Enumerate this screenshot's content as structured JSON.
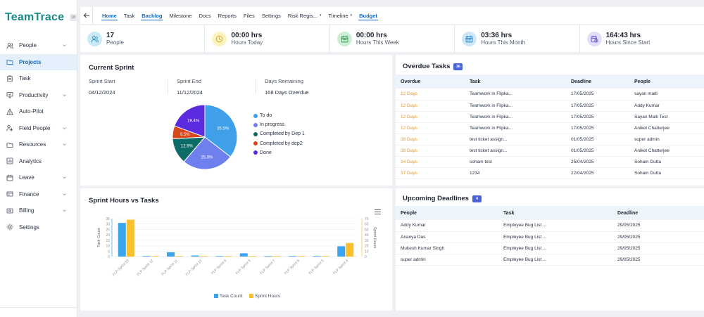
{
  "app": {
    "name": "TeamTrace",
    "badge": "18"
  },
  "sidebar": {
    "items": [
      {
        "label": "People",
        "icon": "people-icon",
        "chevron": true,
        "active": false
      },
      {
        "label": "Projects",
        "icon": "folder-icon",
        "chevron": false,
        "active": true
      },
      {
        "label": "Task",
        "icon": "clipboard-icon",
        "chevron": false,
        "active": false
      },
      {
        "label": "Productivity",
        "icon": "monitor-icon",
        "chevron": true,
        "active": false
      },
      {
        "label": "Auto-Pilot",
        "icon": "warning-icon",
        "chevron": false,
        "active": false
      },
      {
        "label": "Field People",
        "icon": "field-people-icon",
        "chevron": true,
        "active": false
      },
      {
        "label": "Resources",
        "icon": "folder-icon",
        "chevron": true,
        "active": false
      },
      {
        "label": "Analytics",
        "icon": "analytics-icon",
        "chevron": false,
        "active": false
      },
      {
        "label": "Leave",
        "icon": "calendar-icon",
        "chevron": true,
        "active": false
      },
      {
        "label": "Finance",
        "icon": "finance-icon",
        "chevron": true,
        "active": false
      },
      {
        "label": "Billing",
        "icon": "billing-icon",
        "chevron": true,
        "active": false
      },
      {
        "label": "Settings",
        "icon": "gear-icon",
        "chevron": false,
        "active": false
      }
    ]
  },
  "topnav": {
    "tabs": [
      {
        "label": "Home",
        "highlight": true,
        "caret": false
      },
      {
        "label": "Task",
        "highlight": false,
        "caret": false
      },
      {
        "label": "Backlog",
        "highlight": true,
        "caret": false
      },
      {
        "label": "Milestone",
        "highlight": false,
        "caret": false
      },
      {
        "label": "Docs",
        "highlight": false,
        "caret": false
      },
      {
        "label": "Reports",
        "highlight": false,
        "caret": false
      },
      {
        "label": "Files",
        "highlight": false,
        "caret": false
      },
      {
        "label": "Settings",
        "highlight": false,
        "caret": false
      },
      {
        "label": "Risk Regis...",
        "highlight": false,
        "caret": true
      },
      {
        "label": "Timeline",
        "highlight": false,
        "caret": true
      },
      {
        "label": "Budget",
        "highlight": true,
        "caret": false
      }
    ]
  },
  "stats": [
    {
      "value": "17",
      "label": "People",
      "icon": "people-icon",
      "color": "#c9e9f6",
      "fg": "#2d8fc2"
    },
    {
      "value": "00:00 hrs",
      "label": "Hours Today",
      "icon": "clock-icon",
      "color": "#fdf3bf",
      "fg": "#d7a11a"
    },
    {
      "value": "00:00 hrs",
      "label": "Hours This Week",
      "icon": "calendar-week-icon",
      "color": "#cdeed5",
      "fg": "#2f9b57"
    },
    {
      "value": "03:36 hrs",
      "label": "Hours This Month",
      "icon": "calendar-month-icon",
      "color": "#cfe6f6",
      "fg": "#2d86c2"
    },
    {
      "value": "164:43 hrs",
      "label": "Hours Since Start",
      "icon": "calendar-clock-icon",
      "color": "#e2defa",
      "fg": "#6b5bd0"
    }
  ],
  "sprint": {
    "title": "Current Sprint",
    "start_label": "Sprint Start",
    "start_value": "04/12/2024",
    "end_label": "Sprint End",
    "end_value": "11/12/2024",
    "remaining_label": "Days Remaining",
    "remaining_value": "168 Days Overdue",
    "pie": [
      {
        "label": "To do",
        "value": 35.5,
        "text": "35.5%",
        "color": "#3f9fe8"
      },
      {
        "label": "In progress",
        "value": 25.8,
        "text": "25.8%",
        "color": "#6e7fee"
      },
      {
        "label": "Completed by Dep 1",
        "value": 12.9,
        "text": "12.9%",
        "color": "#0d6b68"
      },
      {
        "label": "Completed by dep2",
        "value": 6.5,
        "text": "6.5%",
        "color": "#d9481c"
      },
      {
        "label": "Done",
        "value": 19.4,
        "text": "19.4%",
        "color": "#5b2be0"
      }
    ]
  },
  "chart_data": {
    "type": "bar",
    "title": "Sprint Hours vs Tasks",
    "categories": [
      "FLP Sprint 13",
      "FLP Sprint 12",
      "FLP Sprint 11",
      "FLP Sprint 10",
      "FLP Sprint 9",
      "FLP Sprint 8",
      "FLP Sprint 7",
      "FLP Sprint 6",
      "FLP Sprint 5",
      "FLP Sprint 4"
    ],
    "series": [
      {
        "name": "Task Count",
        "axis": "left",
        "color": "#3aa4ee",
        "values": [
          31,
          0.5,
          4,
          1,
          0.5,
          3,
          0.5,
          0.5,
          0.5,
          9.5
        ]
      },
      {
        "name": "Sprint Hours",
        "axis": "right",
        "color": "#fbc02d",
        "values": [
          68,
          1,
          1,
          1,
          1,
          1,
          1,
          1,
          1,
          25
        ]
      }
    ],
    "ylabel": "Task Count",
    "y2label": "Sprint Hours",
    "ylim": [
      0,
      35
    ],
    "y2lim": [
      0,
      70
    ],
    "yticks": [
      0,
      5,
      10,
      15,
      20,
      25,
      30,
      35
    ],
    "y2ticks": [
      0,
      10,
      20,
      30,
      40,
      50,
      60,
      70
    ],
    "legend": "bottom"
  },
  "overdue": {
    "title": "Overdue Tasks",
    "count": "36",
    "columns": [
      "Overdue",
      "Task",
      "Deadline",
      "People"
    ],
    "rows": [
      [
        "12 Days",
        "Teamwork in Flipka...",
        "17/05/2025",
        "sayan maiti"
      ],
      [
        "12 Days",
        "Teamwork in Flipka...",
        "17/05/2025",
        "Addy Kumar"
      ],
      [
        "12 Days",
        "Teamwork in Flipka...",
        "17/05/2025",
        "Sayan Maiti Test"
      ],
      [
        "12 Days",
        "Teamwork in Flipka...",
        "17/05/2025",
        "Aniket Chatterjee"
      ],
      [
        "28 Days",
        "test ticket assign...",
        "01/05/2025",
        "super admin"
      ],
      [
        "28 Days",
        "test ticket assign...",
        "01/05/2025",
        "Aniket Chatterjee"
      ],
      [
        "34 Days",
        "soham test",
        "25/04/2025",
        "Soham Dutta"
      ],
      [
        "37 Days",
        "1234",
        "22/04/2025",
        "Soham Dutta"
      ]
    ]
  },
  "upcoming": {
    "title": "Upcoming Deadlines",
    "count": "4",
    "columns": [
      "People",
      "Task",
      "Deadline"
    ],
    "rows": [
      [
        "Addy Kumar",
        "Employee Bug List ...",
        "29/05/2025"
      ],
      [
        "Ananya Das",
        "Employee Bug List ...",
        "29/05/2025"
      ],
      [
        "Mukesh Kumar Singh",
        "Employee Bug List ...",
        "29/05/2025"
      ],
      [
        "super admin",
        "Employee Bug List ...",
        "29/05/2025"
      ]
    ]
  }
}
